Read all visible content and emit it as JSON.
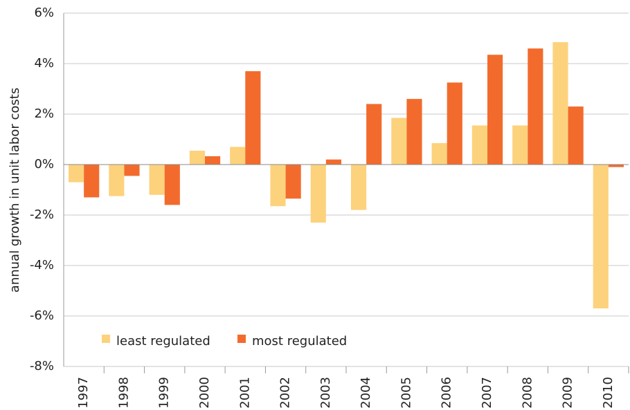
{
  "chart_data": {
    "type": "bar",
    "y_label": "annual growth in unit labor costs",
    "categories": [
      "1997",
      "1998",
      "1999",
      "2000",
      "2001",
      "2002",
      "2003",
      "2004",
      "2005",
      "2006",
      "2007",
      "2008",
      "2009",
      "2010"
    ],
    "series": [
      {
        "name": "least regulated",
        "color": "#fdd27d",
        "values": [
          -0.7,
          -1.25,
          -1.2,
          0.55,
          0.7,
          -1.65,
          -2.3,
          -1.8,
          1.85,
          0.85,
          1.55,
          1.55,
          4.85,
          -5.7
        ]
      },
      {
        "name": "most regulated",
        "color": "#f26b2d",
        "values": [
          -1.3,
          -0.45,
          -1.6,
          0.33,
          3.7,
          -1.35,
          0.2,
          2.4,
          2.6,
          3.25,
          4.35,
          4.6,
          2.3,
          -0.1
        ]
      }
    ],
    "ylim": [
      -8,
      6
    ],
    "yticks": [
      {
        "value": -8,
        "label": "-8%"
      },
      {
        "value": -6,
        "label": "-6%"
      },
      {
        "value": -4,
        "label": "-4%"
      },
      {
        "value": -2,
        "label": "-2%"
      },
      {
        "value": 0,
        "label": "0%"
      },
      {
        "value": 2,
        "label": "2%"
      },
      {
        "value": 4,
        "label": "4%"
      },
      {
        "value": 6,
        "label": "6%"
      }
    ],
    "grid": true,
    "legend": "lower left"
  }
}
